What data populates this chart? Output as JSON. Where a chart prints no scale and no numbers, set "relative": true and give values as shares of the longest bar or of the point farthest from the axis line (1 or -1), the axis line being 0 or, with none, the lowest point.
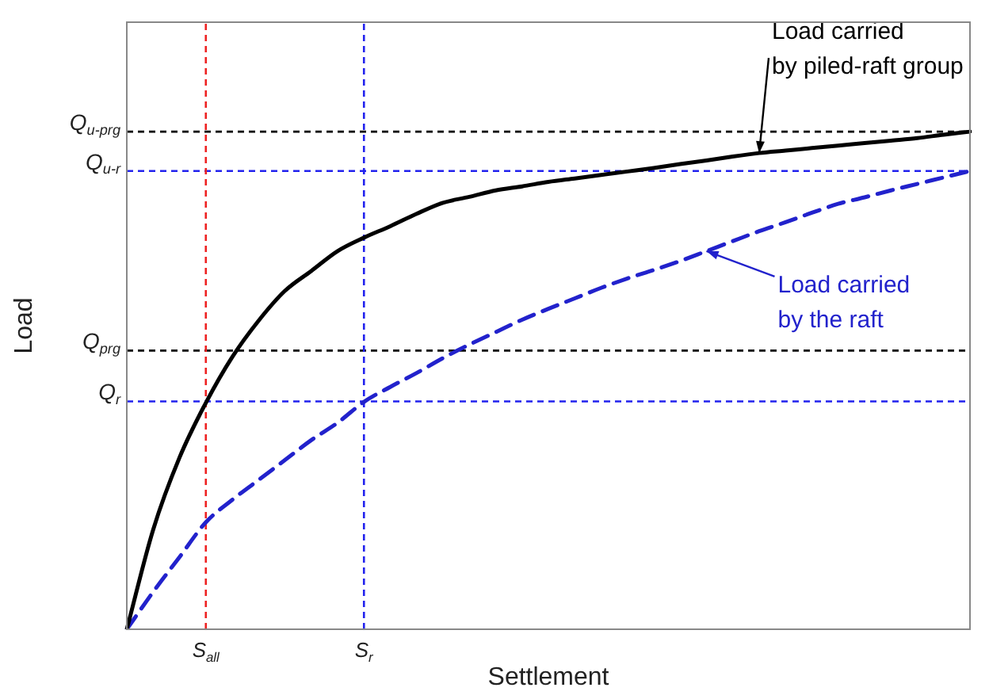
{
  "chart_data": {
    "type": "line",
    "relative": true,
    "xlabel": "Settlement",
    "ylabel": "Load",
    "legend": false,
    "grid": false,
    "marker": "none",
    "categories": [
      null,
      null,
      null,
      "S$_{all}$",
      null,
      null,
      null,
      null,
      null,
      "S$_{r}$",
      null,
      null,
      null,
      null,
      null,
      null,
      null,
      null,
      null,
      null,
      null,
      null,
      null,
      null,
      null,
      null,
      null,
      null,
      null,
      null,
      null,
      null,
      null
    ],
    "series": [
      {
        "color": "#000000",
        "line_style": "solid",
        "values": [
          0,
          0.2,
          0.345,
          0.455,
          0.547,
          0.62,
          0.68,
          0.72,
          0.76,
          0.787,
          0.81,
          0.835,
          0.857,
          0.869,
          0.882,
          0.89,
          0.899,
          0.906,
          0.913,
          0.92,
          0.927,
          0.935,
          0.942,
          0.95,
          0.957,
          0.962,
          0.967,
          0.972,
          0.977,
          0.982,
          0.987,
          0.994,
          1.0
        ]
      },
      {
        "color": "#2222cc",
        "line_style": "dashed",
        "values": [
          0,
          0.075,
          0.145,
          0.215,
          0.26,
          0.3,
          0.34,
          0.38,
          0.415,
          0.457,
          0.487,
          0.515,
          0.545,
          0.572,
          0.597,
          0.622,
          0.644,
          0.665,
          0.686,
          0.705,
          0.722,
          0.74,
          0.76,
          0.78,
          0.8,
          0.818,
          0.837,
          0.855,
          0.868,
          0.882,
          0.895,
          0.908,
          0.921
        ]
      }
    ],
    "ref_lines": [
      {
        "axis": "y",
        "value": 1.0,
        "label": "Q$_{u-prg}$",
        "color": "#000000",
        "line_style": "dashed"
      },
      {
        "axis": "y",
        "value": 0.921,
        "label": "Q$_{u-r}$",
        "color": "#2222ee",
        "line_style": "dashed"
      },
      {
        "axis": "y",
        "value": 0.56,
        "label": "Q$_{prg}$",
        "color": "#000000",
        "line_style": "dashed"
      },
      {
        "axis": "y",
        "value": 0.458,
        "label": "Q$_{r}$",
        "color": "#2222ee",
        "line_style": "dashed"
      },
      {
        "axis": "x",
        "value": "S$_{all}$",
        "color": "#ee2222",
        "line_style": "dashed"
      },
      {
        "axis": "x",
        "value": "S$_{r}$",
        "color": "#2222ee",
        "line_style": "dashed"
      }
    ],
    "annotations": [
      "Load carried\nby piled-raft group",
      "Load carried\nby the raft"
    ]
  }
}
